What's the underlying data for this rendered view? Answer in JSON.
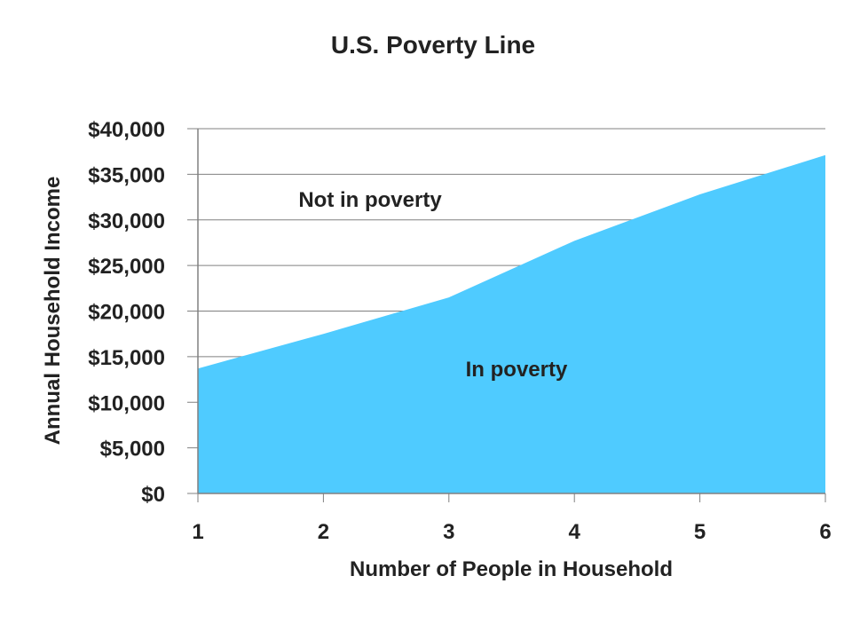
{
  "chart_data": {
    "type": "area",
    "title": "U.S. Poverty Line",
    "xlabel": "Number of People in Household",
    "ylabel": "Annual Household Income",
    "x": [
      1,
      2,
      3,
      4,
      5,
      6
    ],
    "values": [
      13700,
      17500,
      21500,
      27700,
      32800,
      37100
    ],
    "ylim": [
      0,
      40000
    ],
    "yticks": [
      "$0",
      "$5,000",
      "$10,000",
      "$15,000",
      "$20,000",
      "$25,000",
      "$30,000",
      "$35,000",
      "$40,000"
    ],
    "xticks": [
      "1",
      "2",
      "3",
      "4",
      "5",
      "6"
    ],
    "grid": true,
    "annotations": {
      "above": "Not in poverty",
      "below": "In poverty"
    },
    "colors": {
      "fill": "#4FCBFF",
      "grid": "#808080",
      "axis": "#808080",
      "text": "#222222"
    }
  }
}
